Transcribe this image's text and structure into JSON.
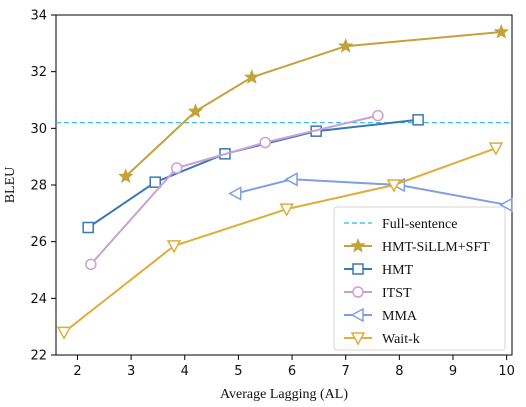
{
  "chart_data": {
    "type": "line",
    "xlabel": "Average Lagging (AL)",
    "ylabel": "BLEU",
    "xlim": [
      1.6,
      10.1
    ],
    "ylim": [
      22,
      34
    ],
    "xticks": [
      2,
      3,
      4,
      5,
      6,
      7,
      8,
      9,
      10
    ],
    "yticks": [
      22,
      24,
      26,
      28,
      30,
      32,
      34
    ],
    "grid": false,
    "legend_position": "lower-right",
    "reference_lines": [
      {
        "name": "Full-sentence",
        "y": 30.2,
        "color": "#29b6e6",
        "style": "dashed"
      }
    ],
    "series": [
      {
        "name": "HMT-SiLLM+SFT",
        "color": "#c4a23a",
        "marker": "star",
        "x": [
          2.9,
          4.2,
          5.25,
          7.0,
          9.9
        ],
        "y": [
          28.3,
          30.6,
          31.8,
          32.9,
          33.4
        ]
      },
      {
        "name": "HMT",
        "color": "#3a78b0",
        "marker": "square",
        "x": [
          2.2,
          3.45,
          4.75,
          6.45,
          8.35
        ],
        "y": [
          26.5,
          28.1,
          29.1,
          29.9,
          30.3
        ]
      },
      {
        "name": "ITST",
        "color": "#caa0d8",
        "marker": "circle",
        "x": [
          2.25,
          3.85,
          5.5,
          7.6
        ],
        "y": [
          25.2,
          28.6,
          29.5,
          30.45
        ]
      },
      {
        "name": "MMA",
        "color": "#7f9fe0",
        "marker": "triangle-left",
        "x": [
          4.95,
          6.0,
          8.0,
          10.0
        ],
        "y": [
          27.7,
          28.2,
          28.0,
          27.3
        ]
      },
      {
        "name": "Wait-k",
        "color": "#e0ad3a",
        "marker": "triangle-down",
        "x": [
          1.75,
          3.8,
          5.9,
          7.9,
          9.8
        ],
        "y": [
          22.8,
          25.85,
          27.15,
          28.0,
          29.3
        ]
      }
    ]
  }
}
